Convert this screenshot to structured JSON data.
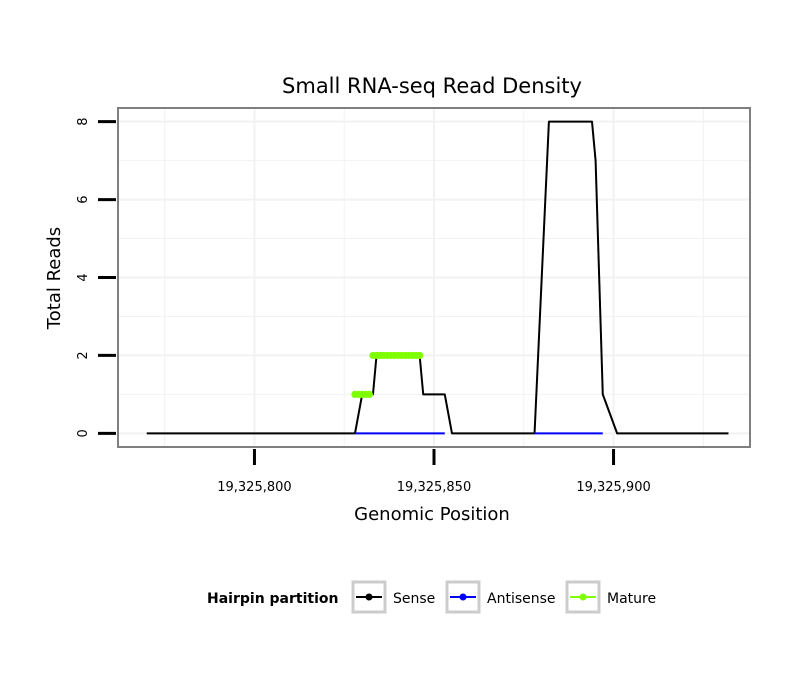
{
  "chart_data": {
    "type": "line",
    "title": "Small RNA-seq Read Density",
    "xlabel": "Genomic Position",
    "ylabel": "Total Reads",
    "xlim": [
      19325762,
      19325938
    ],
    "ylim": [
      -0.35,
      8.35
    ],
    "x_ticks": [
      19325800,
      19325850,
      19325900
    ],
    "x_tick_labels": [
      "19,325,800",
      "19,325,850",
      "19,325,900"
    ],
    "y_ticks": [
      0,
      2,
      4,
      6,
      8
    ],
    "y_tick_labels": [
      "0",
      "2",
      "4",
      "6",
      "8"
    ],
    "grid": true,
    "legend": {
      "title": "Hairpin partition",
      "placement": "bottom",
      "entries": [
        "Sense",
        "Antisense",
        "Mature"
      ]
    },
    "series": [
      {
        "name": "Sense",
        "color": "#000000",
        "x": [
          19325770,
          19325828,
          19325830,
          19325833,
          19325834,
          19325846,
          19325847,
          19325853,
          19325855,
          19325868,
          19325870,
          19325878,
          19325881,
          19325882,
          19325894,
          19325895,
          19325896,
          19325897,
          19325901,
          19325905,
          19325932
        ],
        "values": [
          0,
          0,
          1,
          1,
          2,
          2,
          1,
          1,
          0,
          0,
          0,
          0,
          6,
          8,
          8,
          7,
          4,
          1,
          0,
          0,
          0
        ]
      },
      {
        "name": "Antisense",
        "color": "#0000ff",
        "x": [
          19325828,
          19325853,
          19325878,
          19325897
        ],
        "values": [
          0,
          0,
          0,
          0
        ]
      },
      {
        "name": "Mature",
        "color": "#7fff00",
        "x": [
          19325828,
          19325829,
          19325830,
          19325831,
          19325832,
          19325833,
          19325834,
          19325835,
          19325836,
          19325837,
          19325838,
          19325839,
          19325840,
          19325841,
          19325842,
          19325843,
          19325844,
          19325845,
          19325846
        ],
        "values": [
          1,
          1,
          1,
          1,
          1,
          2,
          2,
          2,
          2,
          2,
          2,
          2,
          2,
          2,
          2,
          2,
          2,
          2,
          2
        ]
      }
    ]
  },
  "colors": {
    "sense": "#000000",
    "antisense": "#0000ff",
    "mature": "#7fff00",
    "panel_border": "#7f7f7f",
    "grid": "#f2f2f2"
  }
}
